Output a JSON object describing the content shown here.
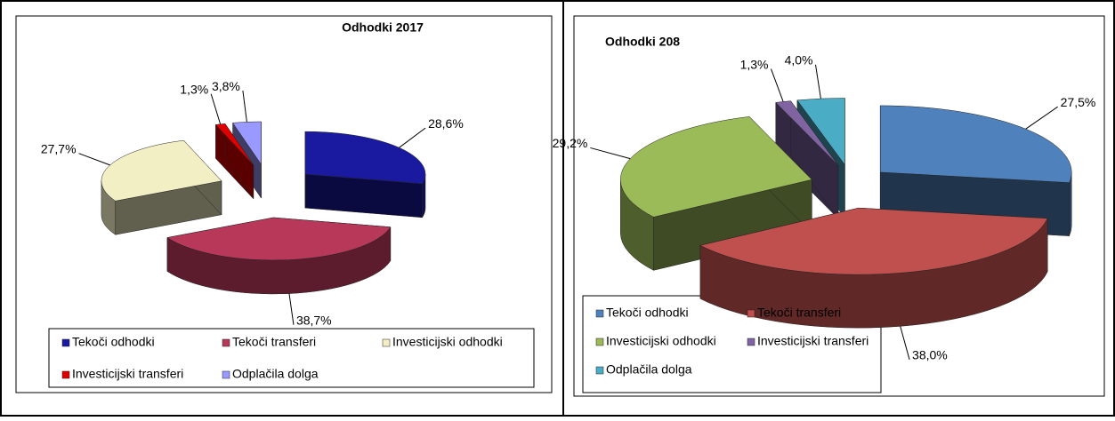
{
  "chart_data": [
    {
      "type": "pie",
      "title": "Odhodki 2017",
      "categories": [
        "Tekoči odhodki",
        "Tekoči transferi",
        "Investicijski odhodki",
        "Investicijski transferi",
        "Odplačila dolga"
      ],
      "values": [
        28.6,
        38.7,
        27.7,
        1.3,
        3.8
      ],
      "value_labels": [
        "28,6%",
        "38,7%",
        "27,7%",
        "1,3%",
        "3,8%"
      ],
      "colors": [
        "#1a1aa0",
        "#b8385a",
        "#f3efc4",
        "#e00000",
        "#9999ff"
      ]
    },
    {
      "type": "pie",
      "title": "Odhodki 208",
      "categories": [
        "Tekoči odhodki",
        "Tekoči transferi",
        "Investicijski odhodki",
        "Investicijski transferi",
        "Odplačila dolga"
      ],
      "values": [
        27.5,
        38.0,
        29.2,
        1.3,
        4.0
      ],
      "value_labels": [
        "27,5%",
        "38,0%",
        "29,2%",
        "1,3%",
        "4,0%"
      ],
      "colors": [
        "#4f81bd",
        "#c0504d",
        "#9bbb59",
        "#8064a2",
        "#4bacc6"
      ]
    }
  ]
}
